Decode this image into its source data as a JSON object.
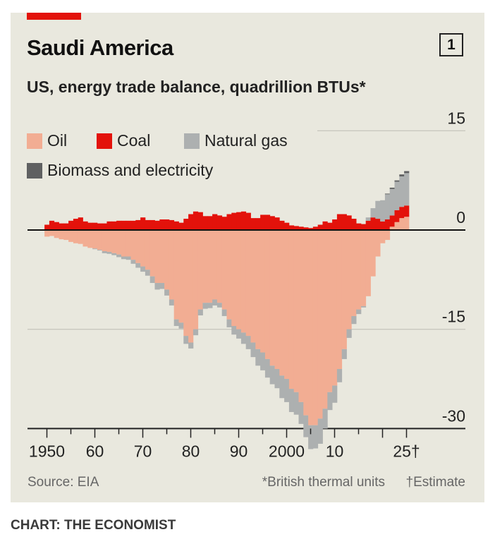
{
  "header": {
    "title": "Saudi America",
    "chart_number": "1",
    "subtitle": "US, energy trade balance, quadrillion BTUs*"
  },
  "legend": {
    "items": [
      {
        "label": "Oil",
        "color": "#f2ad93"
      },
      {
        "label": "Coal",
        "color": "#e3120b"
      },
      {
        "label": "Natural gas",
        "color": "#adb0b0"
      },
      {
        "label": "Biomass and electricity",
        "color": "#5f6061"
      }
    ]
  },
  "footer": {
    "source": "Source: EIA",
    "note_btu": "*British thermal units",
    "note_estimate": "†Estimate",
    "credit": "CHART: THE ECONOMIST"
  },
  "chart_data": {
    "type": "bar",
    "stacked": true,
    "title": "Saudi America",
    "subtitle": "US, energy trade balance, quadrillion BTUs*",
    "xlabel": "",
    "ylabel": "quadrillion BTUs",
    "ylim": [
      -30,
      15
    ],
    "y_ticks": [
      15,
      0,
      -15,
      -30
    ],
    "y_tick_labels": [
      "15",
      "0",
      "-15",
      "-30"
    ],
    "x_ticks": [
      1950,
      1960,
      1970,
      1980,
      1990,
      2000,
      2010,
      2025
    ],
    "x_tick_labels": [
      "1950",
      "60",
      "70",
      "80",
      "90",
      "2000",
      "10",
      "25†"
    ],
    "grid": true,
    "years": [
      1950,
      1951,
      1952,
      1953,
      1954,
      1955,
      1956,
      1957,
      1958,
      1959,
      1960,
      1961,
      1962,
      1963,
      1964,
      1965,
      1966,
      1967,
      1968,
      1969,
      1970,
      1971,
      1972,
      1973,
      1974,
      1975,
      1976,
      1977,
      1978,
      1979,
      1980,
      1981,
      1982,
      1983,
      1984,
      1985,
      1986,
      1987,
      1988,
      1989,
      1990,
      1991,
      1992,
      1993,
      1994,
      1995,
      1996,
      1997,
      1998,
      1999,
      2000,
      2001,
      2002,
      2003,
      2004,
      2005,
      2006,
      2007,
      2008,
      2009,
      2010,
      2011,
      2012,
      2013,
      2014,
      2015,
      2016,
      2017,
      2018,
      2019,
      2020,
      2021,
      2022,
      2023,
      2024,
      2025
    ],
    "series": [
      {
        "name": "Oil",
        "values": [
          -1.0,
          -0.9,
          -1.2,
          -1.4,
          -1.5,
          -1.8,
          -2.0,
          -2.1,
          -2.5,
          -2.7,
          -2.8,
          -3.0,
          -3.2,
          -3.3,
          -3.5,
          -3.7,
          -4.0,
          -4.0,
          -4.5,
          -5.0,
          -5.5,
          -6.0,
          -7.0,
          -8.0,
          -8.0,
          -9.0,
          -10.5,
          -13.5,
          -14.0,
          -16.0,
          -17.0,
          -15.0,
          -12.0,
          -11.0,
          -11.0,
          -10.5,
          -11.0,
          -12.0,
          -13.5,
          -14.5,
          -15.0,
          -15.5,
          -16.0,
          -17.0,
          -18.0,
          -18.5,
          -19.5,
          -20.5,
          -21.0,
          -22.0,
          -22.5,
          -24.0,
          -24.5,
          -26.0,
          -28.0,
          -29.5,
          -29.5,
          -28.5,
          -27.0,
          -24.5,
          -23.5,
          -21.0,
          -18.0,
          -15.0,
          -13.0,
          -12.0,
          -11.5,
          -10.0,
          -7.0,
          -4.0,
          -2.0,
          -1.5,
          0.5,
          1.2,
          1.8,
          2.0
        ]
      },
      {
        "name": "Coal",
        "values": [
          0.8,
          1.4,
          1.2,
          1.0,
          1.0,
          1.4,
          1.7,
          1.9,
          1.3,
          1.1,
          1.1,
          1.0,
          1.0,
          1.3,
          1.3,
          1.4,
          1.4,
          1.4,
          1.4,
          1.5,
          1.9,
          1.5,
          1.5,
          1.4,
          1.6,
          1.6,
          1.5,
          1.3,
          1.1,
          1.7,
          2.4,
          2.8,
          2.7,
          2.1,
          2.1,
          2.4,
          2.2,
          2.0,
          2.4,
          2.6,
          2.7,
          2.8,
          2.6,
          1.8,
          1.8,
          2.3,
          2.3,
          2.1,
          1.9,
          1.4,
          1.1,
          0.7,
          0.6,
          0.5,
          0.4,
          0.3,
          0.5,
          0.8,
          1.3,
          1.1,
          1.6,
          2.4,
          2.4,
          2.2,
          1.7,
          1.0,
          0.9,
          1.4,
          1.9,
          1.7,
          1.3,
          1.6,
          1.7,
          1.8,
          1.7,
          1.7
        ]
      },
      {
        "name": "Natural gas",
        "values": [
          0.0,
          0.0,
          0.0,
          0.0,
          0.0,
          0.0,
          0.0,
          0.0,
          0.0,
          0.0,
          -0.1,
          -0.1,
          -0.3,
          -0.3,
          -0.3,
          -0.4,
          -0.4,
          -0.5,
          -0.6,
          -0.7,
          -0.8,
          -0.9,
          -1.0,
          -1.0,
          -0.9,
          -0.9,
          -0.9,
          -1.0,
          -0.9,
          -1.2,
          -0.9,
          -0.9,
          -0.9,
          -0.9,
          -0.8,
          -0.9,
          -0.7,
          -1.0,
          -1.2,
          -1.3,
          -1.4,
          -1.7,
          -2.0,
          -2.2,
          -2.5,
          -2.7,
          -2.8,
          -2.8,
          -2.9,
          -3.4,
          -3.5,
          -3.5,
          -3.4,
          -3.3,
          -3.3,
          -3.6,
          -3.5,
          -3.8,
          -3.0,
          -2.7,
          -2.6,
          -2.0,
          -1.5,
          -1.3,
          -1.2,
          -0.7,
          -0.2,
          0.5,
          1.4,
          2.7,
          3.2,
          3.8,
          4.0,
          4.3,
          4.6,
          4.9
        ]
      },
      {
        "name": "Biomass and electricity",
        "values": [
          0.0,
          0.0,
          0.0,
          0.0,
          0.0,
          0.0,
          0.0,
          0.0,
          0.0,
          0.0,
          0.0,
          0.0,
          0.0,
          0.0,
          0.0,
          0.0,
          0.0,
          0.0,
          0.0,
          0.0,
          0.0,
          0.0,
          0.0,
          0.0,
          0.0,
          0.0,
          0.0,
          0.0,
          0.0,
          0.0,
          0.0,
          0.0,
          0.0,
          0.0,
          0.0,
          0.0,
          0.0,
          0.0,
          0.0,
          0.0,
          0.0,
          0.0,
          0.0,
          0.0,
          0.0,
          0.0,
          0.0,
          0.0,
          0.0,
          0.0,
          0.0,
          0.0,
          0.0,
          0.0,
          0.0,
          0.0,
          0.0,
          0.0,
          0.0,
          0.0,
          0.0,
          0.0,
          0.0,
          0.0,
          0.0,
          0.0,
          0.0,
          0.0,
          0.0,
          0.0,
          0.0,
          0.1,
          0.2,
          0.2,
          0.3,
          0.3
        ]
      }
    ],
    "colors": {
      "Oil": "#f2ad93",
      "Coal": "#e3120b",
      "Natural gas": "#adb0b0",
      "Biomass and electricity": "#5f6061"
    }
  }
}
